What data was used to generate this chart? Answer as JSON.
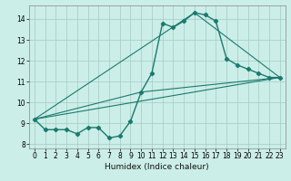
{
  "xlabel": "Humidex (Indice chaleur)",
  "bg_color": "#cceee8",
  "grid_color": "#aacfca",
  "line_color": "#1a7a6e",
  "xlim": [
    -0.5,
    23.5
  ],
  "ylim": [
    7.8,
    14.65
  ],
  "xticks": [
    0,
    1,
    2,
    3,
    4,
    5,
    6,
    7,
    8,
    9,
    10,
    11,
    12,
    13,
    14,
    15,
    16,
    17,
    18,
    19,
    20,
    21,
    22,
    23
  ],
  "yticks": [
    8,
    9,
    10,
    11,
    12,
    13,
    14
  ],
  "main_x": [
    0,
    1,
    2,
    3,
    4,
    5,
    6,
    7,
    8,
    9,
    10,
    11,
    12,
    13,
    14,
    15,
    16,
    17,
    18,
    19,
    20,
    21,
    22,
    23
  ],
  "main_y": [
    9.2,
    8.7,
    8.7,
    8.7,
    8.5,
    8.8,
    8.8,
    8.3,
    8.4,
    9.1,
    10.5,
    11.4,
    13.8,
    13.6,
    13.9,
    14.3,
    14.2,
    13.9,
    12.1,
    11.8,
    11.6,
    11.4,
    11.2,
    11.2
  ],
  "line1_x": [
    0,
    23
  ],
  "line1_y": [
    9.2,
    11.2
  ],
  "line2_x": [
    0,
    10,
    23
  ],
  "line2_y": [
    9.2,
    10.5,
    11.2
  ],
  "line3_x": [
    0,
    15,
    23
  ],
  "line3_y": [
    9.2,
    14.3,
    11.2
  ]
}
